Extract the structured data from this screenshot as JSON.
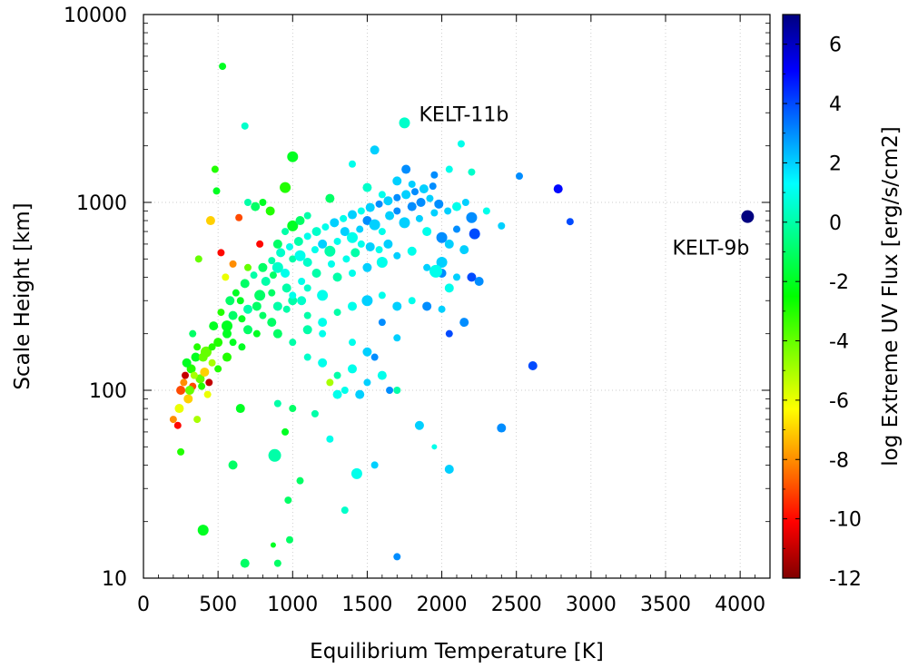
{
  "chart_data": {
    "type": "scatter",
    "xlabel": "Equilibrium Temperature [K]",
    "ylabel": "Scale Height [km]",
    "colorbar_label": "log Extreme UV Flux [erg/s/cm2]",
    "xlim": [
      0,
      4200
    ],
    "ylim": [
      10,
      10000
    ],
    "yscale": "log",
    "clim": [
      -12,
      7
    ],
    "grid": true,
    "x_ticks": [
      0,
      500,
      1000,
      1500,
      2000,
      2500,
      3000,
      3500,
      4000
    ],
    "x_tick_labels": [
      "0",
      "500",
      "1000",
      "1500",
      "2000",
      "2500",
      "3000",
      "3500",
      "4000"
    ],
    "y_ticks": [
      10,
      100,
      1000,
      10000
    ],
    "y_tick_labels": [
      "10",
      "100",
      "1000",
      "10000"
    ],
    "c_ticks": [
      -12,
      -10,
      -8,
      -6,
      -4,
      -2,
      0,
      2,
      4,
      6
    ],
    "c_tick_labels": [
      "-12",
      "-10",
      "-8",
      "-6",
      "-4",
      "-2",
      "0",
      "2",
      "4",
      "6"
    ],
    "colormap": [
      "#800000",
      "#ff0000",
      "#ff8000",
      "#ffff00",
      "#80ff00",
      "#00ff00",
      "#00ff80",
      "#00ffff",
      "#0080ff",
      "#0000ff",
      "#000080"
    ],
    "annotations": [
      {
        "text": "KELT-11b",
        "x": 1750,
        "y": 2650
      },
      {
        "text": "KELT-9b",
        "x": 4050,
        "y": 840
      }
    ],
    "points": [
      [
        1750,
        2650,
        0.5,
        6
      ],
      [
        4050,
        840,
        7,
        7
      ],
      [
        530,
        5300,
        -2,
        4
      ],
      [
        680,
        2550,
        0.5,
        4
      ],
      [
        2130,
        2050,
        1,
        4
      ],
      [
        1550,
        1900,
        2,
        5
      ],
      [
        1760,
        1500,
        3,
        5
      ],
      [
        2780,
        1180,
        5,
        5
      ],
      [
        2520,
        1380,
        3,
        4
      ],
      [
        2200,
        830,
        3,
        6
      ],
      [
        2220,
        680,
        4,
        6
      ],
      [
        2860,
        790,
        4,
        4
      ],
      [
        2610,
        135,
        4,
        5
      ],
      [
        2400,
        63,
        3,
        5
      ],
      [
        1850,
        65,
        2,
        5
      ],
      [
        2050,
        38,
        2,
        5
      ],
      [
        1700,
        13,
        3,
        4
      ],
      [
        980,
        16,
        -1,
        4
      ],
      [
        680,
        12,
        -1,
        5
      ],
      [
        900,
        12,
        -1,
        4
      ],
      [
        400,
        18,
        -2,
        6
      ],
      [
        600,
        40,
        -1,
        5
      ],
      [
        880,
        45,
        0,
        7
      ],
      [
        1050,
        33,
        -1,
        4
      ],
      [
        1430,
        36,
        1,
        6
      ],
      [
        1550,
        40,
        2,
        4
      ],
      [
        1950,
        50,
        1,
        3
      ],
      [
        1350,
        23,
        0.5,
        4
      ],
      [
        970,
        26,
        -1,
        4
      ],
      [
        870,
        15,
        -2,
        3
      ],
      [
        360,
        70,
        -5,
        4
      ],
      [
        250,
        47,
        -3,
        4
      ],
      [
        200,
        70,
        -8,
        4
      ],
      [
        230,
        65,
        -10,
        4
      ],
      [
        240,
        80,
        -6,
        5
      ],
      [
        300,
        90,
        -7,
        5
      ],
      [
        330,
        105,
        -9,
        4
      ],
      [
        380,
        115,
        -4,
        5
      ],
      [
        430,
        95,
        -6,
        4
      ],
      [
        280,
        120,
        -11,
        4
      ],
      [
        320,
        130,
        -3,
        5
      ],
      [
        350,
        150,
        -2,
        5
      ],
      [
        420,
        160,
        -4,
        6
      ],
      [
        460,
        140,
        -5,
        4
      ],
      [
        500,
        180,
        -3,
        5
      ],
      [
        560,
        220,
        -2,
        6
      ],
      [
        600,
        250,
        -1,
        5
      ],
      [
        650,
        300,
        -2,
        4
      ],
      [
        700,
        270,
        0,
        5
      ],
      [
        780,
        320,
        -1,
        6
      ],
      [
        820,
        380,
        0,
        5
      ],
      [
        870,
        410,
        -1,
        4
      ],
      [
        900,
        450,
        0.5,
        6
      ],
      [
        950,
        420,
        1,
        5
      ],
      [
        1000,
        500,
        0,
        4
      ],
      [
        1050,
        520,
        1,
        6
      ],
      [
        1100,
        480,
        0.5,
        5
      ],
      [
        1150,
        560,
        1,
        4
      ],
      [
        1200,
        600,
        2,
        5
      ],
      [
        1250,
        550,
        0,
        6
      ],
      [
        1300,
        620,
        1,
        4
      ],
      [
        1350,
        700,
        2,
        5
      ],
      [
        1400,
        650,
        1,
        6
      ],
      [
        1450,
        720,
        2,
        4
      ],
      [
        1500,
        800,
        3,
        5
      ],
      [
        1550,
        760,
        2,
        6
      ],
      [
        1600,
        700,
        1,
        4
      ],
      [
        1650,
        850,
        2,
        5
      ],
      [
        1700,
        900,
        3,
        4
      ],
      [
        1750,
        780,
        2,
        6
      ],
      [
        1800,
        950,
        3,
        5
      ],
      [
        1850,
        820,
        2,
        4
      ],
      [
        1900,
        700,
        1,
        5
      ],
      [
        1950,
        880,
        2,
        4
      ],
      [
        2000,
        650,
        3,
        6
      ],
      [
        2050,
        600,
        2,
        5
      ],
      [
        2100,
        720,
        3,
        4
      ],
      [
        2150,
        560,
        2,
        5
      ],
      [
        2300,
        900,
        1,
        4
      ],
      [
        2400,
        750,
        2,
        4
      ],
      [
        1000,
        300,
        0,
        5
      ],
      [
        1100,
        350,
        0.5,
        4
      ],
      [
        1200,
        320,
        1,
        6
      ],
      [
        1300,
        400,
        0,
        5
      ],
      [
        1400,
        420,
        1,
        4
      ],
      [
        1500,
        450,
        2,
        5
      ],
      [
        1600,
        480,
        1,
        6
      ],
      [
        1700,
        520,
        2,
        4
      ],
      [
        1800,
        550,
        1,
        5
      ],
      [
        1900,
        450,
        2,
        4
      ],
      [
        2000,
        420,
        3,
        5
      ],
      [
        2100,
        400,
        2,
        4
      ],
      [
        1100,
        250,
        0,
        4
      ],
      [
        1200,
        230,
        1,
        5
      ],
      [
        1300,
        260,
        0,
        4
      ],
      [
        1400,
        280,
        1,
        5
      ],
      [
        1500,
        300,
        2,
        6
      ],
      [
        1600,
        320,
        1,
        4
      ],
      [
        1700,
        280,
        2,
        5
      ],
      [
        1800,
        300,
        1,
        4
      ],
      [
        1900,
        280,
        3,
        5
      ],
      [
        2000,
        270,
        2,
        4
      ],
      [
        900,
        600,
        -1,
        5
      ],
      [
        950,
        700,
        0,
        4
      ],
      [
        1000,
        750,
        -2,
        6
      ],
      [
        1050,
        800,
        -1,
        5
      ],
      [
        1100,
        850,
        0,
        4
      ],
      [
        850,
        900,
        -3,
        5
      ],
      [
        800,
        1000,
        -2,
        4
      ],
      [
        750,
        950,
        -1,
        5
      ],
      [
        700,
        1000,
        0,
        4
      ],
      [
        1000,
        1750,
        -2,
        6
      ],
      [
        950,
        1200,
        -3,
        6
      ],
      [
        1250,
        1050,
        -1,
        5
      ],
      [
        1400,
        1600,
        1,
        4
      ],
      [
        1500,
        1200,
        0.5,
        5
      ],
      [
        1600,
        1100,
        1,
        4
      ],
      [
        1700,
        1300,
        2,
        5
      ],
      [
        1800,
        1250,
        2,
        4
      ],
      [
        1950,
        1400,
        3,
        4
      ],
      [
        2050,
        1500,
        1,
        4
      ],
      [
        2200,
        1450,
        0.5,
        4
      ],
      [
        480,
        1500,
        -3,
        4
      ],
      [
        490,
        1150,
        -2,
        4
      ],
      [
        450,
        800,
        -7,
        5
      ],
      [
        640,
        830,
        -9,
        4
      ],
      [
        520,
        540,
        -10,
        4
      ],
      [
        780,
        600,
        -10,
        4
      ],
      [
        600,
        470,
        -8,
        4
      ],
      [
        550,
        400,
        -6,
        4
      ],
      [
        700,
        450,
        -4,
        4
      ],
      [
        370,
        500,
        -4,
        4
      ],
      [
        900,
        200,
        -1,
        5
      ],
      [
        1000,
        180,
        0,
        4
      ],
      [
        1100,
        150,
        0.5,
        4
      ],
      [
        1200,
        140,
        1,
        5
      ],
      [
        1300,
        120,
        0,
        4
      ],
      [
        1400,
        130,
        1,
        5
      ],
      [
        1500,
        110,
        2,
        4
      ],
      [
        1600,
        120,
        1,
        5
      ],
      [
        1700,
        100,
        0,
        4
      ],
      [
        1250,
        110,
        -5,
        4
      ],
      [
        1350,
        100,
        1,
        4
      ],
      [
        1450,
        95,
        2,
        5
      ],
      [
        1650,
        100,
        3,
        4
      ],
      [
        1300,
        95,
        1,
        5
      ],
      [
        1000,
        80,
        -1,
        4
      ],
      [
        900,
        85,
        0,
        4
      ],
      [
        650,
        80,
        -2,
        5
      ],
      [
        950,
        60,
        -2,
        4
      ],
      [
        1150,
        75,
        0,
        4
      ],
      [
        1250,
        55,
        1,
        4
      ],
      [
        2050,
        200,
        4,
        4
      ],
      [
        2150,
        230,
        3,
        5
      ],
      [
        2200,
        400,
        4,
        5
      ],
      [
        2250,
        380,
        3,
        5
      ],
      [
        2000,
        480,
        2,
        6
      ],
      [
        2050,
        350,
        1,
        5
      ],
      [
        1960,
        430,
        1,
        7
      ],
      [
        1600,
        230,
        3,
        4
      ],
      [
        1700,
        190,
        2,
        4
      ],
      [
        1400,
        180,
        1,
        4
      ],
      [
        1500,
        160,
        2,
        5
      ],
      [
        1550,
        150,
        3,
        4
      ],
      [
        1200,
        200,
        1,
        4
      ],
      [
        1100,
        210,
        0,
        5
      ],
      [
        250,
        100,
        -9,
        5
      ],
      [
        270,
        110,
        -8,
        4
      ],
      [
        310,
        100,
        -4,
        5
      ],
      [
        340,
        120,
        -5,
        4
      ],
      [
        390,
        105,
        -3,
        4
      ],
      [
        410,
        125,
        -7,
        5
      ],
      [
        440,
        110,
        -11,
        4
      ],
      [
        290,
        140,
        -2,
        5
      ],
      [
        360,
        170,
        -3,
        4
      ],
      [
        330,
        200,
        -1,
        4
      ],
      [
        470,
        220,
        -2,
        5
      ],
      [
        520,
        260,
        -3,
        4
      ],
      [
        580,
        300,
        -1,
        5
      ],
      [
        620,
        330,
        -2,
        4
      ],
      [
        680,
        370,
        -1,
        5
      ],
      [
        740,
        410,
        0,
        4
      ],
      [
        800,
        450,
        -1,
        5
      ],
      [
        860,
        490,
        0,
        4
      ],
      [
        920,
        540,
        0.5,
        5
      ],
      [
        980,
        580,
        1,
        4
      ],
      [
        1040,
        620,
        0,
        5
      ],
      [
        1100,
        660,
        1,
        4
      ],
      [
        1160,
        700,
        0.5,
        5
      ],
      [
        1220,
        740,
        1,
        4
      ],
      [
        1280,
        780,
        2,
        5
      ],
      [
        1340,
        820,
        1,
        4
      ],
      [
        1400,
        860,
        2,
        5
      ],
      [
        1460,
        900,
        1,
        4
      ],
      [
        1520,
        940,
        2,
        5
      ],
      [
        1580,
        980,
        3,
        4
      ],
      [
        1640,
        1020,
        2,
        5
      ],
      [
        1700,
        1060,
        3,
        4
      ],
      [
        1760,
        1100,
        2,
        5
      ],
      [
        1820,
        1140,
        3,
        4
      ],
      [
        1880,
        1180,
        2,
        5
      ],
      [
        1940,
        1220,
        3,
        4
      ],
      [
        1860,
        1000,
        3,
        5
      ],
      [
        1920,
        1050,
        2,
        4
      ],
      [
        1980,
        980,
        3,
        5
      ],
      [
        2040,
        900,
        2,
        4
      ],
      [
        2100,
        950,
        1,
        5
      ],
      [
        2160,
        1000,
        2,
        4
      ],
      [
        1460,
        600,
        1,
        4
      ],
      [
        1520,
        580,
        2,
        5
      ],
      [
        1580,
        560,
        1,
        4
      ],
      [
        1640,
        600,
        2,
        5
      ],
      [
        1360,
        500,
        1,
        4
      ],
      [
        1420,
        540,
        0,
        5
      ],
      [
        1260,
        470,
        1,
        4
      ],
      [
        1160,
        420,
        0,
        5
      ],
      [
        1060,
        380,
        1,
        4
      ],
      [
        960,
        350,
        0,
        5
      ],
      [
        860,
        330,
        -1,
        4
      ],
      [
        760,
        280,
        -1,
        5
      ],
      [
        660,
        240,
        -2,
        4
      ],
      [
        560,
        200,
        -2,
        5
      ],
      [
        460,
        170,
        -3,
        4
      ],
      [
        400,
        150,
        -4,
        5
      ],
      [
        760,
        200,
        -2,
        4
      ],
      [
        860,
        230,
        -1,
        5
      ],
      [
        960,
        270,
        0,
        4
      ],
      [
        1060,
        300,
        0.5,
        5
      ],
      [
        660,
        170,
        -2,
        4
      ],
      [
        560,
        150,
        -3,
        5
      ],
      [
        500,
        130,
        -3,
        4
      ],
      [
        600,
        180,
        -2,
        4
      ],
      [
        700,
        210,
        -1,
        5
      ],
      [
        800,
        250,
        -1,
        4
      ],
      [
        900,
        280,
        0,
        5
      ],
      [
        1000,
        320,
        1,
        4
      ]
    ]
  }
}
